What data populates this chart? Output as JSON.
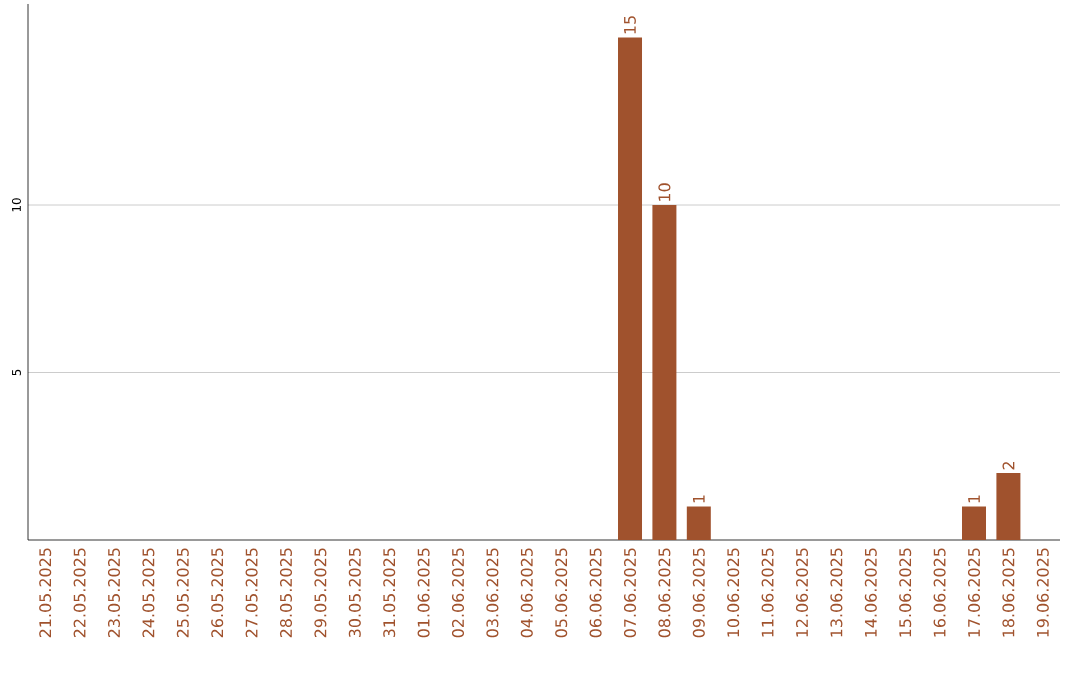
{
  "chart_data": {
    "type": "bar",
    "categories": [
      "21.05.2025",
      "22.05.2025",
      "23.05.2025",
      "24.05.2025",
      "25.05.2025",
      "26.05.2025",
      "27.05.2025",
      "28.05.2025",
      "29.05.2025",
      "30.05.2025",
      "31.05.2025",
      "01.06.2025",
      "02.06.2025",
      "03.06.2025",
      "04.06.2025",
      "05.06.2025",
      "06.06.2025",
      "07.06.2025",
      "08.06.2025",
      "09.06.2025",
      "10.06.2025",
      "11.06.2025",
      "12.06.2025",
      "13.06.2025",
      "14.06.2025",
      "15.06.2025",
      "16.06.2025",
      "17.06.2025",
      "18.06.2025",
      "19.06.2025"
    ],
    "values": [
      0,
      0,
      0,
      0,
      0,
      0,
      0,
      0,
      0,
      0,
      0,
      0,
      0,
      0,
      0,
      0,
      0,
      15,
      10,
      1,
      0,
      0,
      0,
      0,
      0,
      0,
      0,
      1,
      2,
      0
    ],
    "value_labels": [
      null,
      null,
      null,
      null,
      null,
      null,
      null,
      null,
      null,
      null,
      null,
      null,
      null,
      null,
      null,
      null,
      null,
      "15",
      "10",
      "1",
      null,
      null,
      null,
      null,
      null,
      null,
      null,
      "1",
      "2",
      null
    ],
    "color": "#a0522d",
    "ylim": [
      0,
      16
    ],
    "yticks": [
      5,
      10
    ],
    "grid": "y"
  }
}
